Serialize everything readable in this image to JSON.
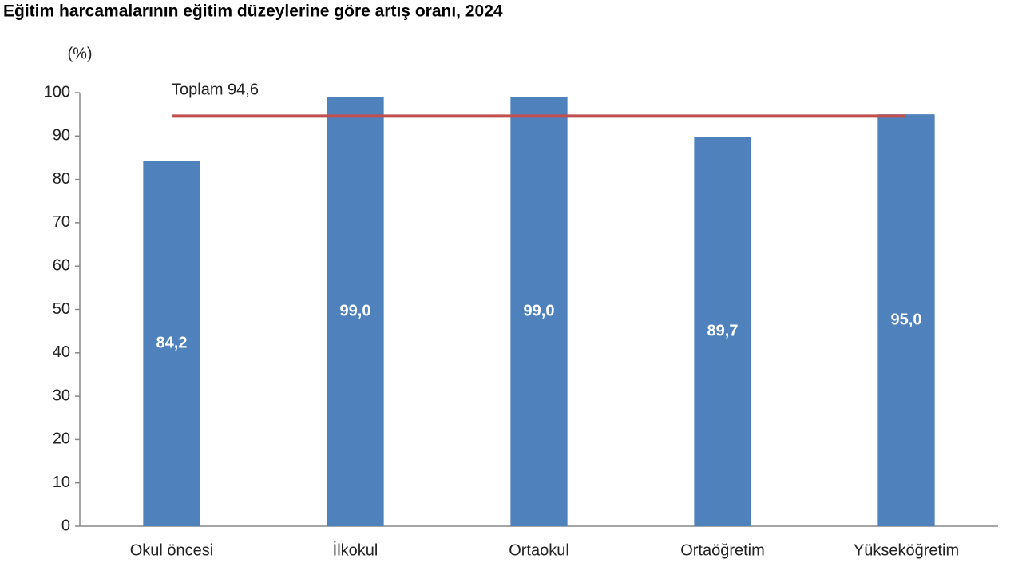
{
  "chart_data": {
    "type": "bar",
    "title": "Eğitim harcamalarının eğitim düzeylerine göre artış oranı, 2024",
    "y_label": "(%)",
    "categories": [
      "Okul öncesi",
      "İlkokul",
      "Ortaokul",
      "Ortaöğretim",
      "Yükseköğretim"
    ],
    "values": [
      84.2,
      99.0,
      99.0,
      89.7,
      95.0
    ],
    "value_labels": [
      "84,2",
      "99,0",
      "99,0",
      "89,7",
      "95,0"
    ],
    "color": "#4f81bd",
    "reference_line": {
      "value": 94.6,
      "label": "Toplam 94,6",
      "color": "#c0504d"
    },
    "ylim": [
      0,
      100
    ],
    "yticks": [
      0,
      10,
      20,
      30,
      40,
      50,
      60,
      70,
      80,
      90,
      100
    ],
    "grid": false
  }
}
